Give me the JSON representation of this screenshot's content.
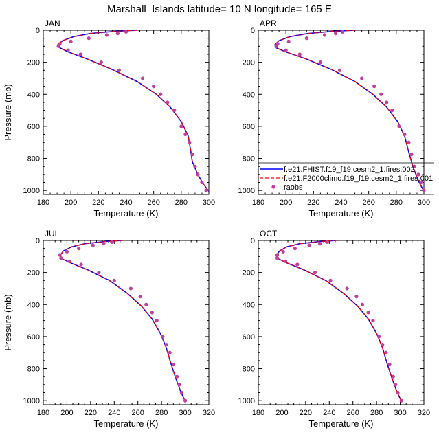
{
  "title": "Marshall_Islands  latitude= 10 N longitude= 165 E",
  "colors": {
    "model1": "#0000ff",
    "model2": "#ff0000",
    "obs": "#c0409a",
    "axis": "#000000"
  },
  "legend": {
    "items": [
      {
        "label": "f.e21.FHIST.f19_f19.cesm2_1.fires.002",
        "style": "solid",
        "color": "#0000ff"
      },
      {
        "label": "f.e21.F2000climo.f19_f19.cesm2_1.fires.001",
        "style": "dashed",
        "color": "#ff0000"
      },
      {
        "label": "raobs",
        "style": "marker",
        "color": "#c0409a"
      }
    ]
  },
  "chart_data": [
    {
      "type": "line",
      "panel": "JAN",
      "title": "JAN",
      "xlabel": "Temperature (K)",
      "ylabel": "Pressure (mb)",
      "xlim": [
        180,
        300
      ],
      "ylim": [
        0,
        1025
      ],
      "y_inverted": true,
      "xticks": [
        180,
        200,
        220,
        240,
        260,
        280,
        300
      ],
      "yticks": [
        0,
        200,
        400,
        600,
        800,
        1000
      ],
      "series": [
        {
          "name": "f.e21.FHIST.f19_f19.cesm2_1.fires.002",
          "style": "solid",
          "x": [
            248,
            232,
            214,
            202,
            194,
            190.5,
            192,
            198,
            212,
            230,
            248,
            262,
            272,
            280,
            285,
            287,
            288,
            292,
            296,
            300
          ],
          "y": [
            0,
            7,
            20,
            40,
            65,
            90,
            110,
            135,
            180,
            245,
            320,
            400,
            480,
            570,
            660,
            760,
            820,
            900,
            960,
            1005
          ]
        },
        {
          "name": "f.e21.F2000climo.f19_f19.cesm2_1.fires.001",
          "style": "dashed",
          "x": [
            248,
            232,
            214,
            202,
            194,
            190.5,
            192,
            198,
            212,
            230,
            248,
            262,
            272,
            280,
            285,
            287,
            288,
            292,
            296,
            300
          ],
          "y": [
            0,
            7,
            20,
            40,
            65,
            90,
            110,
            135,
            180,
            245,
            320,
            400,
            480,
            570,
            660,
            760,
            820,
            900,
            960,
            1005
          ]
        },
        {
          "name": "raobs",
          "style": "marker",
          "x": [
            240,
            234,
            226,
            213,
            200,
            192,
            191,
            198,
            207,
            222,
            235,
            252,
            260,
            265,
            270,
            275,
            280,
            283,
            286,
            288,
            290,
            292,
            295,
            298
          ],
          "y": [
            10,
            20,
            30,
            50,
            70,
            85,
            100,
            125,
            150,
            200,
            250,
            300,
            350,
            400,
            450,
            500,
            600,
            650,
            700,
            775,
            850,
            900,
            950,
            1000
          ]
        }
      ]
    },
    {
      "type": "line",
      "panel": "APR",
      "title": "APR",
      "xlabel": "Temperature (K)",
      "ylabel": "",
      "xlim": [
        180,
        300
      ],
      "ylim": [
        0,
        1025
      ],
      "y_inverted": true,
      "xticks": [
        180,
        200,
        220,
        240,
        260,
        280,
        300
      ],
      "yticks": [
        0,
        200,
        400,
        600,
        800,
        1000
      ],
      "series": [
        {
          "name": "f.e21.FHIST.f19_f19.cesm2_1.fires.002",
          "style": "solid",
          "x": [
            250,
            234,
            216,
            203,
            195,
            192,
            193,
            200,
            215,
            233,
            250,
            263,
            273,
            281,
            286,
            289,
            292,
            296,
            300
          ],
          "y": [
            0,
            7,
            20,
            40,
            65,
            90,
            110,
            135,
            180,
            245,
            320,
            400,
            480,
            570,
            660,
            760,
            850,
            940,
            1005
          ]
        },
        {
          "name": "f.e21.F2000climo.f19_f19.cesm2_1.fires.001",
          "style": "dashed",
          "x": [
            250,
            234,
            216,
            203,
            195,
            192,
            193,
            200,
            215,
            233,
            250,
            263,
            273,
            281,
            286,
            289,
            292,
            296,
            300
          ],
          "y": [
            0,
            7,
            20,
            40,
            65,
            90,
            110,
            135,
            180,
            245,
            320,
            400,
            480,
            570,
            660,
            760,
            850,
            940,
            1005
          ]
        },
        {
          "name": "raobs",
          "style": "marker",
          "x": [
            241,
            236,
            228,
            215,
            202,
            194,
            193,
            200,
            210,
            225,
            239,
            255,
            264,
            269,
            273,
            277,
            282,
            286,
            289,
            291,
            293,
            296,
            298,
            300
          ],
          "y": [
            10,
            20,
            30,
            50,
            70,
            85,
            100,
            125,
            150,
            200,
            250,
            300,
            350,
            400,
            450,
            500,
            600,
            650,
            700,
            775,
            850,
            900,
            950,
            1000
          ]
        }
      ]
    },
    {
      "type": "line",
      "panel": "JUL",
      "title": "JUL",
      "xlabel": "Temperature (K)",
      "ylabel": "Pressure (mb)",
      "xlim": [
        180,
        320
      ],
      "ylim": [
        0,
        1025
      ],
      "y_inverted": true,
      "xticks": [
        180,
        200,
        220,
        240,
        260,
        280,
        300,
        320
      ],
      "yticks": [
        0,
        200,
        400,
        600,
        800,
        1000
      ],
      "series": [
        {
          "name": "f.e21.FHIST.f19_f19.cesm2_1.fires.002",
          "style": "solid",
          "x": [
            247,
            232,
            215,
            204,
            197,
            194,
            196,
            203,
            218,
            236,
            251,
            263,
            272,
            279,
            284,
            288,
            292,
            296,
            300
          ],
          "y": [
            0,
            7,
            20,
            40,
            65,
            95,
            115,
            140,
            185,
            250,
            330,
            410,
            490,
            580,
            670,
            770,
            860,
            940,
            1005
          ]
        },
        {
          "name": "f.e21.F2000climo.f19_f19.cesm2_1.fires.001",
          "style": "dashed",
          "x": [
            247,
            232,
            215,
            204,
            197,
            194,
            196,
            203,
            218,
            236,
            251,
            263,
            272,
            279,
            284,
            288,
            292,
            296,
            300
          ],
          "y": [
            0,
            7,
            20,
            40,
            65,
            95,
            115,
            140,
            185,
            250,
            330,
            410,
            490,
            580,
            670,
            770,
            860,
            940,
            1005
          ]
        },
        {
          "name": "raobs",
          "style": "marker",
          "x": [
            238,
            231,
            222,
            210,
            200,
            194,
            195,
            202,
            212,
            227,
            240,
            254,
            262,
            267,
            272,
            276,
            281,
            284,
            287,
            290,
            293,
            295,
            297,
            300
          ],
          "y": [
            10,
            20,
            30,
            50,
            70,
            90,
            110,
            130,
            150,
            200,
            250,
            300,
            350,
            400,
            450,
            500,
            600,
            650,
            700,
            775,
            850,
            900,
            950,
            1000
          ]
        }
      ]
    },
    {
      "type": "line",
      "panel": "OCT",
      "title": "OCT",
      "xlabel": "Temperature (K)",
      "ylabel": "",
      "xlim": [
        180,
        320
      ],
      "ylim": [
        0,
        1025
      ],
      "y_inverted": true,
      "xticks": [
        180,
        200,
        220,
        240,
        260,
        280,
        300,
        320
      ],
      "yticks": [
        0,
        200,
        400,
        600,
        800,
        1000
      ],
      "series": [
        {
          "name": "f.e21.FHIST.f19_f19.cesm2_1.fires.002",
          "style": "solid",
          "x": [
            246,
            232,
            215,
            204,
            198,
            195,
            197,
            204,
            219,
            237,
            252,
            264,
            273,
            280,
            285,
            289,
            293,
            297,
            301
          ],
          "y": [
            0,
            7,
            20,
            40,
            65,
            95,
            115,
            140,
            185,
            250,
            330,
            410,
            490,
            580,
            670,
            770,
            860,
            940,
            1005
          ]
        },
        {
          "name": "f.e21.F2000climo.f19_f19.cesm2_1.fires.001",
          "style": "dashed",
          "x": [
            246,
            232,
            215,
            204,
            198,
            195,
            197,
            204,
            219,
            237,
            252,
            264,
            273,
            280,
            285,
            289,
            293,
            297,
            301
          ],
          "y": [
            0,
            7,
            20,
            40,
            65,
            95,
            115,
            140,
            185,
            250,
            330,
            410,
            490,
            580,
            670,
            770,
            860,
            940,
            1005
          ]
        },
        {
          "name": "raobs",
          "style": "marker",
          "x": [
            238,
            232,
            223,
            211,
            201,
            196,
            196,
            203,
            213,
            228,
            241,
            255,
            263,
            268,
            273,
            277,
            282,
            285,
            288,
            291,
            294,
            296,
            298,
            301
          ],
          "y": [
            10,
            20,
            30,
            50,
            70,
            90,
            110,
            130,
            150,
            200,
            250,
            300,
            350,
            400,
            450,
            500,
            600,
            650,
            700,
            775,
            850,
            900,
            950,
            1000
          ]
        }
      ]
    }
  ]
}
